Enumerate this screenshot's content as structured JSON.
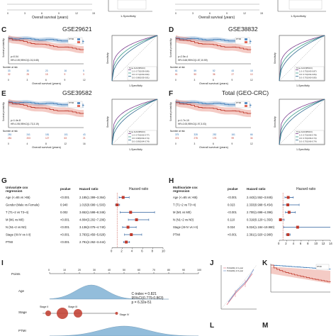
{
  "panels": {
    "C": {
      "label": "C",
      "title": "GSE29621",
      "risk_label": "Number at risk",
      "xlabel": "Overall survival (years)",
      "roc_xlabel": "1-Specificity",
      "roc_ylabel": "Sensitivity",
      "ylabel": "Survival probability",
      "legend_group": "PTMI",
      "p_text": "p=0.04",
      "hr_text": "HR=2.39,95%CI(1.01,5.65)",
      "roc_legend": [
        "Time AUC(95%CI)",
        "1.0: 0.73(0.59-0.86)",
        "3.0: 0.71(0.60-0.82)",
        "5.0: 0.68(0.55-0.81)"
      ],
      "risk_rows": [
        [
          "33",
          "30",
          "23",
          "16",
          "5"
        ],
        [
          "32",
          "25",
          "15",
          "9",
          "3"
        ]
      ]
    },
    "D": {
      "label": "D",
      "title": "GSE38832",
      "risk_label": "Number at risk",
      "xlabel": "Overall survival (years)",
      "roc_xlabel": "1-Specificity",
      "roc_ylabel": "Sensitivity",
      "ylabel": "Survival probability",
      "legend_group": "PTMI",
      "p_text": "p=2.5e-4",
      "hr_text": "HR=3.68,95%CI(1.87,10.59)",
      "roc_legend": [
        "Time AUC(95%CI)",
        "1.0: 0.75(0.63-0.87)",
        "3.0: 0.74(0.64-0.84)",
        "5.0: 0.70(0.60-0.80)"
      ],
      "risk_rows": [
        [
          "61",
          "59",
          "52",
          "43",
          "18"
        ],
        [
          "61",
          "50",
          "36",
          "27",
          "10"
        ]
      ]
    },
    "E": {
      "label": "E",
      "title": "GSE39582",
      "risk_label": "Number at risk",
      "xlabel": "Overall survival (years)",
      "roc_xlabel": "1-Specificity",
      "roc_ylabel": "Sensitivity",
      "ylabel": "Survival probability",
      "legend_group": "PTMI",
      "p_text": "p=1.4e-8",
      "hr_text": "HR=1.95,95%CI(1.73,3.19)",
      "roc_legend": [
        "Time AUC(95%CI)",
        "1.0: 0.70(0.62-0.77)",
        "3.0: 0.68(0.63-0.74)",
        "5.0: 0.69(0.64-0.74)"
      ],
      "risk_rows": [
        [
          "281",
          "241",
          "181",
          "101",
          "43"
        ],
        [
          "281",
          "203",
          "127",
          "63",
          "21"
        ]
      ],
      "x_ticks": [
        "0",
        "4",
        "8",
        "12",
        "16"
      ]
    },
    "F": {
      "label": "F",
      "title": "Total (GEO-CRC)",
      "risk_label": "Number at risk",
      "xlabel": "Overall survival (years)",
      "roc_xlabel": "1-Specificity",
      "roc_ylabel": "Sensitivity",
      "ylabel": "Survival probability",
      "legend_group": "PTMI",
      "p_text": "p=1.7e-10",
      "hr_text": "HR=2.05,95%CI(1.97,3.03)",
      "roc_legend": [
        "Time AUC(95%CI)",
        "1.0: 0.72(0.66-0.78)",
        "3.0: 0.70(0.66-0.74)",
        "5.0: 0.70(0.66-0.74)"
      ],
      "risk_rows": [
        [
          "375",
          "328",
          "252",
          "161",
          "66"
        ],
        [
          "374",
          "278",
          "176",
          "99",
          "34"
        ]
      ]
    },
    "G": {
      "label": "G",
      "heading_line1": "Univariate cox",
      "heading_line2": "regression",
      "col_pvalue": "pvalue",
      "col_hr": "Hazard ratio",
      "plot_title": "Hazard ratio",
      "rows": [
        {
          "name": "Age (<=65 vs >65)",
          "p": "<0.001",
          "hr": "2.185(1.399~3.364)",
          "est": 2.185,
          "lo": 1.399,
          "hi": 3.364
        },
        {
          "name": "Gender (Male vs Female)",
          "p": "0.940",
          "hr": "1.015(0.686~1.503)",
          "est": 1.015,
          "lo": 0.686,
          "hi": 1.503
        },
        {
          "name": "T (T1~2 vs T3~4)",
          "p": "0.002",
          "hr": "3.652(1.598~8.346)",
          "est": 3.652,
          "lo": 1.598,
          "hi": 8.346
        },
        {
          "name": "M (M1 vs M0)",
          "p": "<0.001",
          "hr": "4.804(3.202~7.206)",
          "est": 4.804,
          "lo": 3.202,
          "hi": 7.206
        },
        {
          "name": "N (N1~2 vs N0)",
          "p": "<0.001",
          "hr": "3.136(2.075~4.740)",
          "est": 3.136,
          "lo": 2.075,
          "hi": 4.74
        },
        {
          "name": "Stage (III-IV vs I-II)",
          "p": "<0.001",
          "hr": "3.783(2.456~5.828)",
          "est": 3.783,
          "lo": 2.456,
          "hi": 5.828
        },
        {
          "name": "PTMI",
          "p": "<0.001",
          "hr": "2.791(2.262~3.444)",
          "est": 2.791,
          "lo": 2.262,
          "hi": 3.444
        }
      ],
      "axis_ticks": [
        "0",
        "2",
        "4",
        "6",
        "8",
        "10"
      ]
    },
    "H": {
      "label": "H",
      "heading_line1": "Multivariate cox",
      "heading_line2": "regression",
      "col_pvalue": "pvalue",
      "col_hr": "Hazard ratio",
      "plot_title": "Hazard ratio",
      "rows": [
        {
          "name": "Age (<=65 vs >65)",
          "p": "<0.001",
          "hr": "2.443(1.552~3.845)",
          "est": 2.443,
          "lo": 1.552,
          "hi": 3.845
        },
        {
          "name": "T (T1~2 vs T3~4)",
          "p": "0.023",
          "hr": "2.333(0.998~5.454)",
          "est": 2.333,
          "lo": 0.998,
          "hi": 5.454
        },
        {
          "name": "M (M1 vs M0)",
          "p": "<0.001",
          "hr": "2.700(1.698~4.396)",
          "est": 2.7,
          "lo": 1.698,
          "hi": 4.396
        },
        {
          "name": "N (N1~2 vs N0)",
          "p": "0.110",
          "hr": "0.319(0.120~1.350)",
          "est": 0.319,
          "lo": 0.12,
          "hi": 1.35
        },
        {
          "name": "Stage (III-IV vs I-II)",
          "p": "0.024",
          "hr": "5.024(1.184~19.960)",
          "est": 5.024,
          "lo": 1.184,
          "hi": 19.96
        },
        {
          "name": "PTMI",
          "p": "<0.001",
          "hr": "2.391(1.920~2.980)",
          "est": 2.391,
          "lo": 1.92,
          "hi": 2.98
        }
      ],
      "axis_ticks": [
        "0",
        "2",
        "4",
        "6",
        "8",
        "10",
        "12",
        "14"
      ]
    },
    "I": {
      "label": "I",
      "points_label": "Points",
      "age_label": "Age",
      "stage_label": "Stage",
      "ptmi_label": "PTMI",
      "cindex": "C-index = 0.821",
      "ci": "95%CI(0.779-0.863)",
      "pval": "p = 6.32e-51",
      "stage_ii": "Stage II",
      "stage_iii": "Stage III",
      "stage_iv": "Stage IV",
      "point_ticks": [
        "0",
        "10",
        "20",
        "30",
        "40",
        "50",
        "60",
        "70",
        "80",
        "90",
        "100"
      ]
    },
    "J": {
      "label": "J",
      "legend1": "Probability of 1-year",
      "legend2": "Probability of 3-year"
    },
    "K": {
      "label": "K",
      "legend_group": "PTMI"
    },
    "L": {
      "label": "L"
    },
    "M": {
      "label": "M"
    }
  },
  "top_strip": {
    "xlabel_left": "Overall survival (years)",
    "spec_left": "1-Specificity",
    "xlabel_right": "Overall survival (years)",
    "spec_right": "1-Specificity",
    "x_ticks": [
      "0",
      "3",
      "6",
      "9",
      "12",
      "15"
    ]
  },
  "colors": {
    "high": "#e06a5a",
    "low": "#5b8fc4",
    "red_line": "#c0392b",
    "blue_line": "#2c6fb0",
    "roc1": "#7a3b8c",
    "roc2": "#3b9c8a",
    "roc3": "#2f6a8f",
    "forest_pt": "#c0392b",
    "ci_line": "#2c5f9c",
    "nomo_fill": "#6fa8cf",
    "stage_dot": "#c0392b"
  }
}
